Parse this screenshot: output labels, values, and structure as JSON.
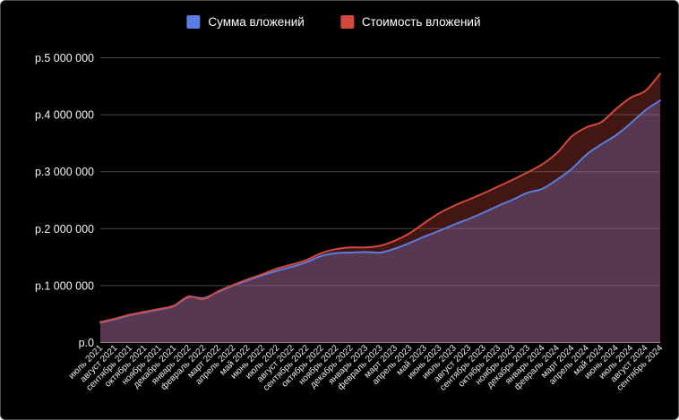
{
  "legend": {
    "items": [
      {
        "label": "Сумма вложений",
        "color": "#5b7ce0"
      },
      {
        "label": "Стоимость вложений",
        "color": "#d2493d"
      }
    ]
  },
  "chart_data": {
    "type": "area",
    "title": "",
    "xlabel": "",
    "ylabel": "",
    "grid": true,
    "legend_position": "top",
    "background": "#000000",
    "gridline_color": "rgba(255,255,255,0.28)",
    "zeroline_color": "rgba(255,255,255,0.55)",
    "ylim": [
      0,
      5000000
    ],
    "yticks": [
      {
        "value": 0,
        "label": "р.0"
      },
      {
        "value": 1000000,
        "label": "р.1 000 000"
      },
      {
        "value": 2000000,
        "label": "р.2 000 000"
      },
      {
        "value": 3000000,
        "label": "р.3 000 000"
      },
      {
        "value": 4000000,
        "label": "р.4 000 000"
      },
      {
        "value": 5000000,
        "label": "р.5 000 000"
      }
    ],
    "x": [
      "июль 2021",
      "август 2021",
      "сентябрь 2021",
      "октябрь 2021",
      "ноябрь 2021",
      "декабрь 2021",
      "январь 2022",
      "февраль 2022",
      "март 2022",
      "апрель 2022",
      "май 2022",
      "июнь 2022",
      "июль 2022",
      "август 2022",
      "сентябрь 2022",
      "октябрь 2022",
      "ноябрь 2022",
      "декабрь 2022",
      "январь 2023",
      "февраль 2023",
      "март 2023",
      "апрель 2023",
      "май 2023",
      "июнь 2023",
      "июль 2023",
      "август 2023",
      "сентябрь 2023",
      "октябрь 2023",
      "ноябрь 2023",
      "декабрь 2023",
      "январь 2024",
      "февраль 2024",
      "март 2024",
      "апрель 2024",
      "май 2024",
      "июнь 2024",
      "июль 2024",
      "август 2024",
      "сентябрь 2024"
    ],
    "series": [
      {
        "name": "Сумма вложений",
        "line_color": "#5b7ce0",
        "fill_color": "rgba(85,119,221,0.40)",
        "values": [
          350000,
          410000,
          480000,
          530000,
          580000,
          640000,
          800000,
          780000,
          890000,
          1000000,
          1090000,
          1180000,
          1260000,
          1330000,
          1410000,
          1520000,
          1570000,
          1580000,
          1590000,
          1580000,
          1650000,
          1750000,
          1860000,
          1960000,
          2070000,
          2170000,
          2280000,
          2400000,
          2510000,
          2630000,
          2700000,
          2860000,
          3050000,
          3300000,
          3480000,
          3640000,
          3850000,
          4080000,
          4250000
        ]
      },
      {
        "name": "Стоимость вложений",
        "line_color": "#d2493d",
        "fill_color": "rgba(214,72,63,0.30)",
        "values": [
          360000,
          420000,
          490000,
          540000,
          590000,
          650000,
          810000,
          760000,
          900000,
          1010000,
          1110000,
          1200000,
          1300000,
          1370000,
          1450000,
          1570000,
          1640000,
          1670000,
          1670000,
          1700000,
          1790000,
          1920000,
          2100000,
          2270000,
          2400000,
          2510000,
          2620000,
          2740000,
          2860000,
          2990000,
          3130000,
          3330000,
          3620000,
          3780000,
          3870000,
          4100000,
          4300000,
          4420000,
          4720000
        ]
      }
    ]
  }
}
